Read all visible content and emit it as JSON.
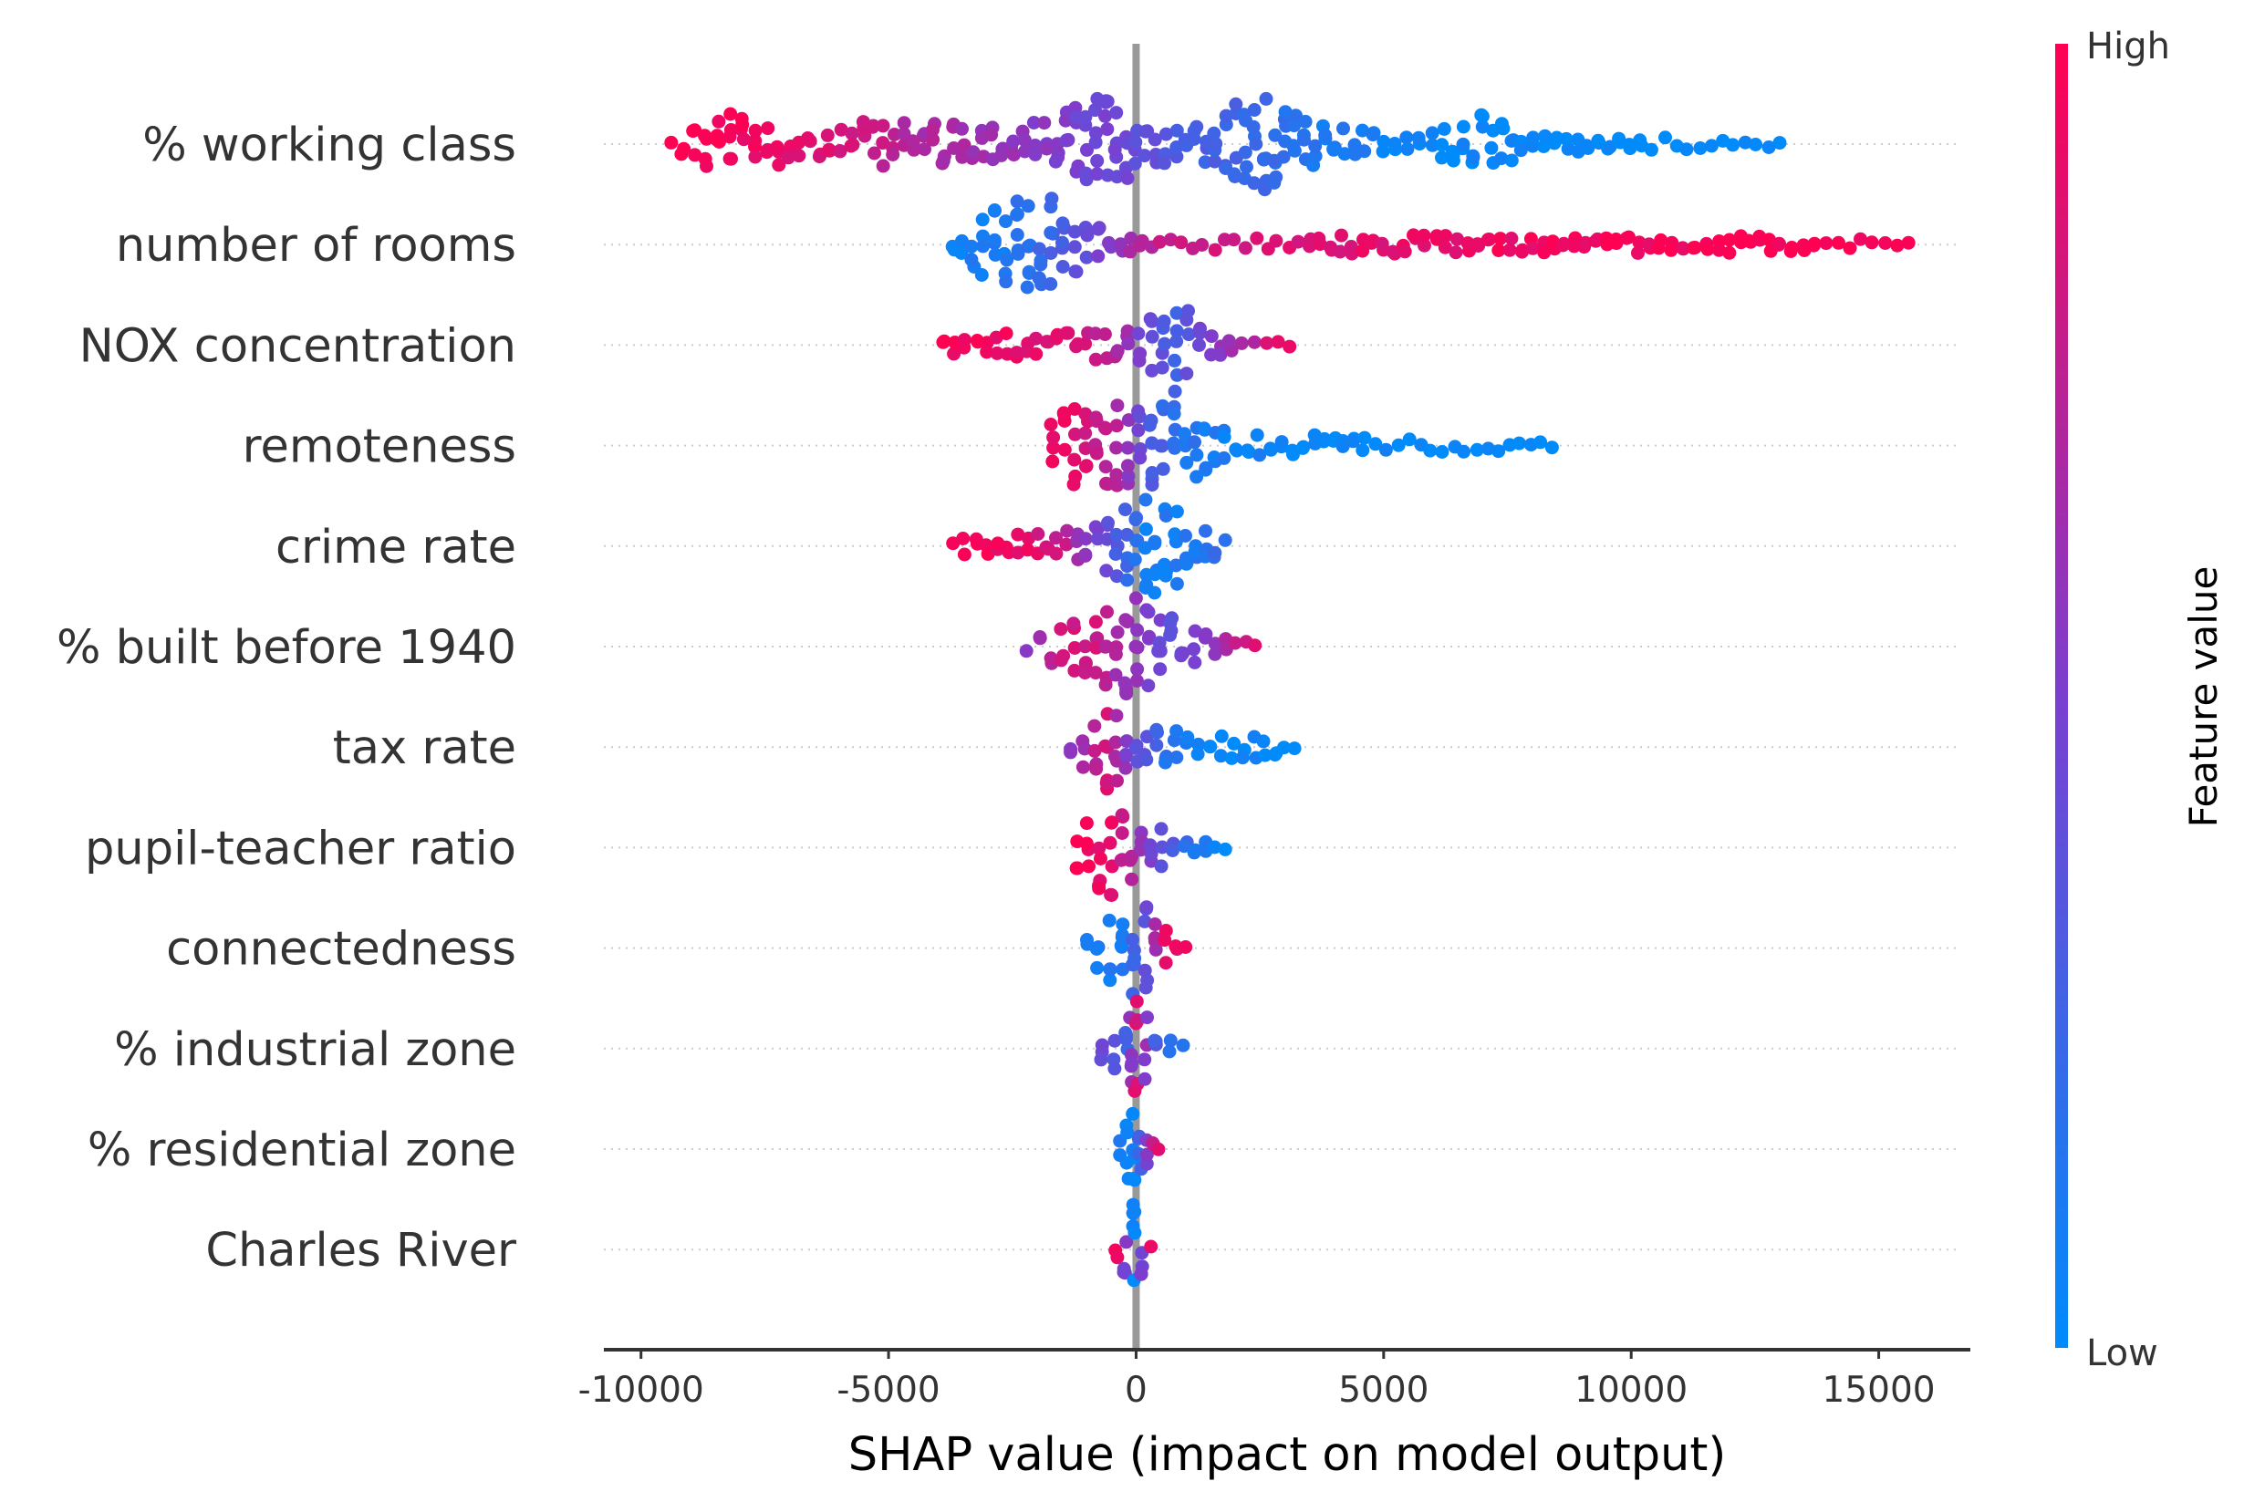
{
  "chart_data": {
    "type": "scatter",
    "subtype": "shap-beeswarm",
    "title": "",
    "xlabel": "SHAP value (impact on model output)",
    "ylabel": "",
    "xlim": [
      -10750,
      16850
    ],
    "xticks": [
      -10000,
      -5000,
      0,
      5000,
      10000,
      15000
    ],
    "xtick_labels": [
      "-10000",
      "-5000",
      "0",
      "5000",
      "10000",
      "15000"
    ],
    "zero_line": 0,
    "grid": "horizontal dotted",
    "colorbar": {
      "title": "Feature value",
      "high_label": "High",
      "low_label": "Low",
      "high_color": "#ff0052",
      "mid_color": "#7b3fd0",
      "low_color": "#008bfb"
    },
    "features": [
      {
        "name": "% working class",
        "segments": [
          {
            "x": -9400,
            "v": 0.99,
            "w": 0
          },
          {
            "x": -8700,
            "v": 0.98,
            "w": 0.6
          },
          {
            "x": -8200,
            "v": 0.97,
            "w": 0.7
          },
          {
            "x": -7700,
            "v": 0.95,
            "w": 0.6
          },
          {
            "x": -7000,
            "v": 0.9,
            "w": 0.25
          },
          {
            "x": -6200,
            "v": 0.85,
            "w": 0.3
          },
          {
            "x": -5500,
            "v": 0.8,
            "w": 0.4
          },
          {
            "x": -4500,
            "v": 0.7,
            "w": 0.4
          },
          {
            "x": -3500,
            "v": 0.65,
            "w": 0.35
          },
          {
            "x": -2500,
            "v": 0.6,
            "w": 0.3
          },
          {
            "x": -1600,
            "v": 0.5,
            "w": 0.55
          },
          {
            "x": -600,
            "v": 0.45,
            "w": 1.0
          },
          {
            "x": 200,
            "v": 0.4,
            "w": 0.4
          },
          {
            "x": 1200,
            "v": 0.3,
            "w": 0.3
          },
          {
            "x": 2000,
            "v": 0.25,
            "w": 0.8
          },
          {
            "x": 2600,
            "v": 0.2,
            "w": 0.9
          },
          {
            "x": 3200,
            "v": 0.15,
            "w": 0.6
          },
          {
            "x": 4000,
            "v": 0.1,
            "w": 0.3
          },
          {
            "x": 5000,
            "v": 0.07,
            "w": 0.15
          },
          {
            "x": 6200,
            "v": 0.05,
            "w": 0.3
          },
          {
            "x": 7000,
            "v": 0.03,
            "w": 0.55
          },
          {
            "x": 7800,
            "v": 0.02,
            "w": 0.3
          },
          {
            "x": 8700,
            "v": 0.01,
            "w": 0.1
          },
          {
            "x": 10200,
            "v": 0.0,
            "w": 0.1
          },
          {
            "x": 11600,
            "v": 0.0,
            "w": 0
          },
          {
            "x": 13000,
            "v": 0.0,
            "w": 0
          }
        ]
      },
      {
        "name": "number of rooms",
        "segments": [
          {
            "x": -3700,
            "v": 0.05,
            "w": 0.1
          },
          {
            "x": -3100,
            "v": 0.1,
            "w": 0.6
          },
          {
            "x": -2400,
            "v": 0.15,
            "w": 1.0
          },
          {
            "x": -1700,
            "v": 0.25,
            "w": 0.9
          },
          {
            "x": -1000,
            "v": 0.4,
            "w": 0.4
          },
          {
            "x": -300,
            "v": 0.6,
            "w": 0.15
          },
          {
            "x": 500,
            "v": 0.75,
            "w": 0.05
          },
          {
            "x": 2000,
            "v": 0.85,
            "w": 0.05
          },
          {
            "x": 3500,
            "v": 0.88,
            "w": 0.1
          },
          {
            "x": 5200,
            "v": 0.9,
            "w": 0.15
          },
          {
            "x": 6700,
            "v": 0.93,
            "w": 0.1
          },
          {
            "x": 10800,
            "v": 0.97,
            "w": 0.1
          },
          {
            "x": 12000,
            "v": 0.98,
            "w": 0.1
          },
          {
            "x": 13000,
            "v": 0.99,
            "w": 0.15
          },
          {
            "x": 14400,
            "v": 0.99,
            "w": 0.05
          },
          {
            "x": 15600,
            "v": 1.0,
            "w": 0
          }
        ]
      },
      {
        "name": "NOX concentration",
        "segments": [
          {
            "x": -3900,
            "v": 0.98,
            "w": 0.1
          },
          {
            "x": -3000,
            "v": 0.95,
            "w": 0.15
          },
          {
            "x": -2000,
            "v": 0.9,
            "w": 0.2
          },
          {
            "x": -1200,
            "v": 0.85,
            "w": 0.2
          },
          {
            "x": -400,
            "v": 0.7,
            "w": 0.3
          },
          {
            "x": 300,
            "v": 0.4,
            "w": 0.5
          },
          {
            "x": 800,
            "v": 0.3,
            "w": 1.0
          },
          {
            "x": 1300,
            "v": 0.45,
            "w": 0.3
          },
          {
            "x": 1900,
            "v": 0.6,
            "w": 0.1
          },
          {
            "x": 3100,
            "v": 0.95,
            "w": 0
          }
        ]
      },
      {
        "name": "remoteness",
        "segments": [
          {
            "x": -1700,
            "v": 0.95,
            "w": 0.5
          },
          {
            "x": -1000,
            "v": 0.85,
            "w": 0.9
          },
          {
            "x": -400,
            "v": 0.7,
            "w": 0.8
          },
          {
            "x": 300,
            "v": 0.3,
            "w": 0.9
          },
          {
            "x": 1000,
            "v": 0.15,
            "w": 0.7
          },
          {
            "x": 1800,
            "v": 0.08,
            "w": 0.3
          },
          {
            "x": 2700,
            "v": 0.05,
            "w": 0.2
          },
          {
            "x": 3600,
            "v": 0.03,
            "w": 0.15
          },
          {
            "x": 4600,
            "v": 0.02,
            "w": 0.1
          },
          {
            "x": 7100,
            "v": 0.01,
            "w": 0.05
          },
          {
            "x": 8400,
            "v": 0.0,
            "w": 0
          }
        ]
      },
      {
        "name": "crime rate",
        "segments": [
          {
            "x": -3700,
            "v": 0.98,
            "w": 0.05
          },
          {
            "x": -3000,
            "v": 0.95,
            "w": 0.2
          },
          {
            "x": -2200,
            "v": 0.9,
            "w": 0.2
          },
          {
            "x": -1400,
            "v": 0.75,
            "w": 0.25
          },
          {
            "x": -600,
            "v": 0.4,
            "w": 0.5
          },
          {
            "x": 200,
            "v": 0.1,
            "w": 1.0
          },
          {
            "x": 800,
            "v": 0.1,
            "w": 0.8
          },
          {
            "x": 1400,
            "v": 0.15,
            "w": 0.3
          },
          {
            "x": 1800,
            "v": 0.2,
            "w": 0.05
          }
        ]
      },
      {
        "name": "% built before 1940",
        "segments": [
          {
            "x": -2200,
            "v": 0.6,
            "w": 0.05
          },
          {
            "x": -1500,
            "v": 0.85,
            "w": 0.4
          },
          {
            "x": -800,
            "v": 0.8,
            "w": 0.7
          },
          {
            "x": 0,
            "v": 0.55,
            "w": 1.0
          },
          {
            "x": 700,
            "v": 0.4,
            "w": 0.6
          },
          {
            "x": 1400,
            "v": 0.5,
            "w": 0.2
          },
          {
            "x": 2400,
            "v": 0.9,
            "w": 0
          }
        ]
      },
      {
        "name": "tax rate",
        "segments": [
          {
            "x": -1300,
            "v": 0.55,
            "w": 0.1
          },
          {
            "x": -600,
            "v": 0.85,
            "w": 0.9
          },
          {
            "x": 0,
            "v": 0.4,
            "w": 0.3
          },
          {
            "x": 800,
            "v": 0.1,
            "w": 0.3
          },
          {
            "x": 1500,
            "v": 0.05,
            "w": 0.15
          },
          {
            "x": 2400,
            "v": 0.03,
            "w": 0.2
          },
          {
            "x": 3200,
            "v": 0.02,
            "w": 0
          }
        ]
      },
      {
        "name": "pupil-teacher ratio",
        "segments": [
          {
            "x": -1200,
            "v": 0.95,
            "w": 0.4
          },
          {
            "x": -500,
            "v": 0.9,
            "w": 1.0
          },
          {
            "x": 300,
            "v": 0.5,
            "w": 0.4
          },
          {
            "x": 1000,
            "v": 0.2,
            "w": 0.2
          },
          {
            "x": 1800,
            "v": 0.05,
            "w": 0
          }
        ]
      },
      {
        "name": "connectedness",
        "segments": [
          {
            "x": -1000,
            "v": 0.1,
            "w": 0.1
          },
          {
            "x": -300,
            "v": 0.1,
            "w": 0.9
          },
          {
            "x": 200,
            "v": 0.4,
            "w": 0.9
          },
          {
            "x": 600,
            "v": 0.9,
            "w": 0.3
          },
          {
            "x": 1000,
            "v": 0.95,
            "w": 0
          }
        ]
      },
      {
        "name": "% industrial zone",
        "segments": [
          {
            "x": -700,
            "v": 0.4,
            "w": 0.3
          },
          {
            "x": -200,
            "v": 0.3,
            "w": 0.5
          },
          {
            "x": 0,
            "v": 0.85,
            "w": 1.0
          },
          {
            "x": 400,
            "v": 0.3,
            "w": 0.3
          },
          {
            "x": 950,
            "v": 0.1,
            "w": 0
          }
        ]
      },
      {
        "name": "% residential zone",
        "segments": [
          {
            "x": -300,
            "v": 0.1,
            "w": 0.1
          },
          {
            "x": -50,
            "v": 0.05,
            "w": 1.0
          },
          {
            "x": 200,
            "v": 0.5,
            "w": 0.3
          },
          {
            "x": 450,
            "v": 0.95,
            "w": 0
          }
        ]
      },
      {
        "name": "Charles River",
        "segments": [
          {
            "x": -400,
            "v": 0.95,
            "w": 0.1
          },
          {
            "x": -50,
            "v": 0.05,
            "w": 1.0
          },
          {
            "x": 300,
            "v": 0.95,
            "w": 0
          }
        ]
      }
    ]
  }
}
